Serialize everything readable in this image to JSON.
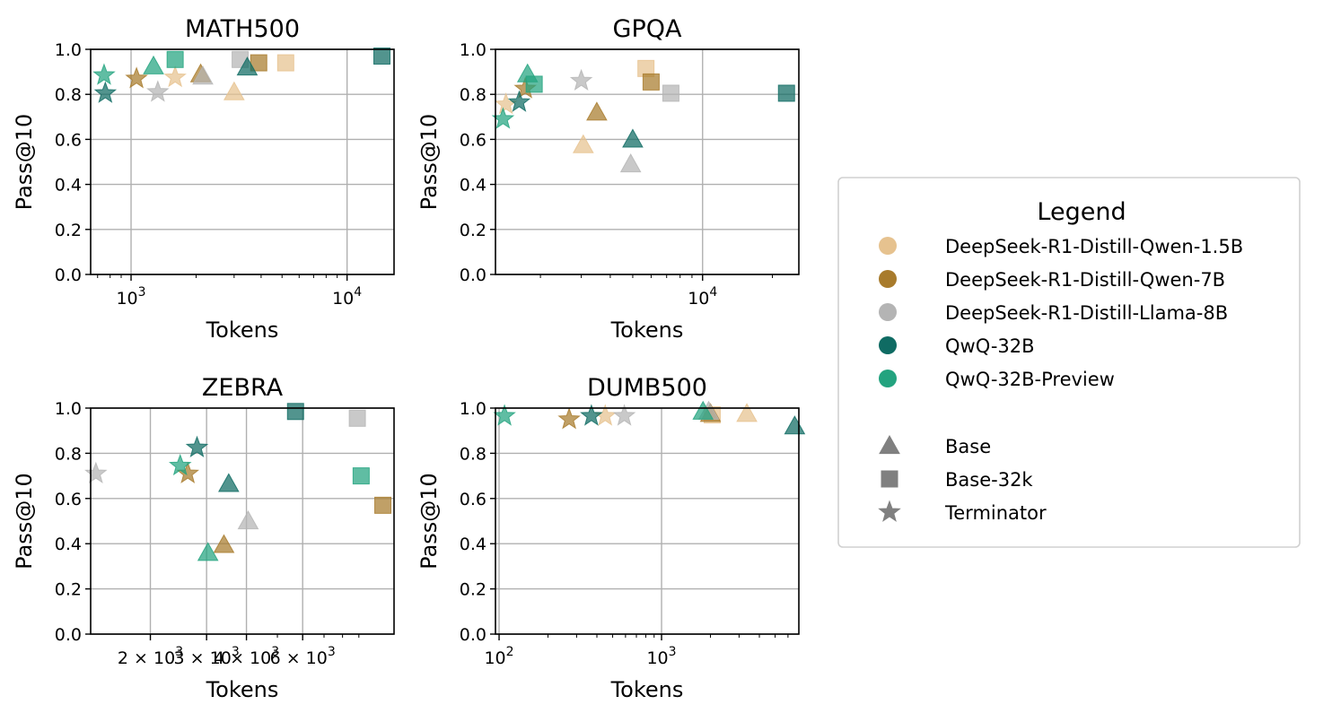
{
  "chart_data": [
    {
      "type": "scatter",
      "title": "MATH500",
      "xlabel": "Tokens",
      "ylabel": "Pass@10",
      "xscale": "log",
      "xlim": [
        650,
        16500
      ],
      "ylim": [
        0,
        1
      ],
      "yticks": [
        "0.0",
        "0.2",
        "0.4",
        "0.6",
        "0.8",
        "1.0"
      ],
      "xticks": [
        {
          "value": 1000,
          "base": "10",
          "exp": "3"
        },
        {
          "value": 10000,
          "base": "10",
          "exp": "4"
        }
      ],
      "grid": true,
      "points": [
        {
          "model": "DeepSeek-R1-Distill-Qwen-1.5B",
          "method": "Terminator",
          "x": 1600,
          "y": 0.875
        },
        {
          "model": "DeepSeek-R1-Distill-Qwen-1.5B",
          "method": "Base",
          "x": 3000,
          "y": 0.81
        },
        {
          "model": "DeepSeek-R1-Distill-Qwen-1.5B",
          "method": "Base-32k",
          "x": 5200,
          "y": 0.94
        },
        {
          "model": "DeepSeek-R1-Distill-Qwen-7B",
          "method": "Terminator",
          "x": 1060,
          "y": 0.87
        },
        {
          "model": "DeepSeek-R1-Distill-Qwen-7B",
          "method": "Base",
          "x": 2100,
          "y": 0.89
        },
        {
          "model": "DeepSeek-R1-Distill-Qwen-7B",
          "method": "Base-32k",
          "x": 3900,
          "y": 0.94
        },
        {
          "model": "DeepSeek-R1-Distill-Llama-8B",
          "method": "Terminator",
          "x": 1330,
          "y": 0.81
        },
        {
          "model": "DeepSeek-R1-Distill-Llama-8B",
          "method": "Base",
          "x": 2150,
          "y": 0.88
        },
        {
          "model": "DeepSeek-R1-Distill-Llama-8B",
          "method": "Base-32k",
          "x": 3200,
          "y": 0.955
        },
        {
          "model": "QwQ-32B",
          "method": "Terminator",
          "x": 760,
          "y": 0.805
        },
        {
          "model": "QwQ-32B",
          "method": "Base",
          "x": 3450,
          "y": 0.92
        },
        {
          "model": "QwQ-32B",
          "method": "Base-32k",
          "x": 14500,
          "y": 0.97
        },
        {
          "model": "QwQ-32B-Preview",
          "method": "Terminator",
          "x": 750,
          "y": 0.885
        },
        {
          "model": "QwQ-32B-Preview",
          "method": "Base",
          "x": 1270,
          "y": 0.925
        },
        {
          "model": "QwQ-32B-Preview",
          "method": "Base-32k",
          "x": 1600,
          "y": 0.955
        }
      ]
    },
    {
      "type": "scatter",
      "title": "GPQA",
      "xlabel": "Tokens",
      "ylabel": "Pass@10",
      "xscale": "log",
      "xlim": [
        1280,
        26000
      ],
      "ylim": [
        0,
        1
      ],
      "yticks": [
        "0.0",
        "0.2",
        "0.4",
        "0.6",
        "0.8",
        "1.0"
      ],
      "xticks": [
        {
          "value": 10000,
          "base": "10",
          "exp": "4"
        }
      ],
      "grid": true,
      "points": [
        {
          "model": "DeepSeek-R1-Distill-Qwen-1.5B",
          "method": "Terminator",
          "x": 1420,
          "y": 0.755
        },
        {
          "model": "DeepSeek-R1-Distill-Qwen-1.5B",
          "method": "Base",
          "x": 3060,
          "y": 0.575
        },
        {
          "model": "DeepSeek-R1-Distill-Qwen-1.5B",
          "method": "Base-32k",
          "x": 5700,
          "y": 0.915
        },
        {
          "model": "DeepSeek-R1-Distill-Qwen-7B",
          "method": "Terminator",
          "x": 1720,
          "y": 0.825
        },
        {
          "model": "DeepSeek-R1-Distill-Qwen-7B",
          "method": "Base",
          "x": 3500,
          "y": 0.72
        },
        {
          "model": "DeepSeek-R1-Distill-Qwen-7B",
          "method": "Base-32k",
          "x": 6000,
          "y": 0.855
        },
        {
          "model": "DeepSeek-R1-Distill-Llama-8B",
          "method": "Terminator",
          "x": 3000,
          "y": 0.86
        },
        {
          "model": "DeepSeek-R1-Distill-Llama-8B",
          "method": "Base",
          "x": 4900,
          "y": 0.49
        },
        {
          "model": "DeepSeek-R1-Distill-Llama-8B",
          "method": "Base-32k",
          "x": 7300,
          "y": 0.805
        },
        {
          "model": "QwQ-32B",
          "method": "Terminator",
          "x": 1620,
          "y": 0.765
        },
        {
          "model": "QwQ-32B",
          "method": "Base",
          "x": 5000,
          "y": 0.6
        },
        {
          "model": "QwQ-32B",
          "method": "Base-32k",
          "x": 23000,
          "y": 0.805
        },
        {
          "model": "QwQ-32B-Preview",
          "method": "Terminator",
          "x": 1380,
          "y": 0.69
        },
        {
          "model": "QwQ-32B-Preview",
          "method": "Base",
          "x": 1760,
          "y": 0.89
        },
        {
          "model": "QwQ-32B-Preview",
          "method": "Base-32k",
          "x": 1880,
          "y": 0.845
        }
      ]
    },
    {
      "type": "scatter",
      "title": "ZEBRA",
      "xlabel": "Tokens",
      "ylabel": "Pass@10",
      "xscale": "log",
      "xlim": [
        1300,
        11600
      ],
      "ylim": [
        0,
        1
      ],
      "yticks": [
        "0.0",
        "0.2",
        "0.4",
        "0.6",
        "0.8",
        "1.0"
      ],
      "xticks": [
        {
          "value": 2000,
          "base": "2 × 10",
          "exp": "3"
        },
        {
          "value": 3000,
          "base": "3 × 10",
          "exp": "3"
        },
        {
          "value": 4000,
          "base": "4 × 10",
          "exp": "3"
        },
        {
          "value": 6000,
          "base": "6 × 10",
          "exp": "3"
        }
      ],
      "grid": true,
      "points": [
        {
          "model": "DeepSeek-R1-Distill-Qwen-7B",
          "method": "Terminator",
          "x": 2620,
          "y": 0.71
        },
        {
          "model": "DeepSeek-R1-Distill-Qwen-7B",
          "method": "Base",
          "x": 3400,
          "y": 0.395
        },
        {
          "model": "DeepSeek-R1-Distill-Qwen-7B",
          "method": "Base-32k",
          "x": 10700,
          "y": 0.57
        },
        {
          "model": "DeepSeek-R1-Distill-Llama-8B",
          "method": "Terminator",
          "x": 1350,
          "y": 0.71
        },
        {
          "model": "DeepSeek-R1-Distill-Llama-8B",
          "method": "Base",
          "x": 4050,
          "y": 0.5
        },
        {
          "model": "DeepSeek-R1-Distill-Llama-8B",
          "method": "Base-32k",
          "x": 8900,
          "y": 0.955
        },
        {
          "model": "QwQ-32B",
          "method": "Terminator",
          "x": 2800,
          "y": 0.825
        },
        {
          "model": "QwQ-32B",
          "method": "Base",
          "x": 3520,
          "y": 0.665
        },
        {
          "model": "QwQ-32B",
          "method": "Base-32k",
          "x": 5700,
          "y": 0.985
        },
        {
          "model": "QwQ-32B-Preview",
          "method": "Terminator",
          "x": 2480,
          "y": 0.745
        },
        {
          "model": "QwQ-32B-Preview",
          "method": "Base",
          "x": 3030,
          "y": 0.36
        },
        {
          "model": "QwQ-32B-Preview",
          "method": "Base-32k",
          "x": 9150,
          "y": 0.7
        }
      ]
    },
    {
      "type": "scatter",
      "title": "DUMB500",
      "xlabel": "Tokens",
      "ylabel": "Pass@10",
      "xscale": "log",
      "xlim": [
        95,
        7000
      ],
      "ylim": [
        0,
        1
      ],
      "yticks": [
        "0.0",
        "0.2",
        "0.4",
        "0.6",
        "0.8",
        "1.0"
      ],
      "xticks": [
        {
          "value": 100,
          "base": "10",
          "exp": "2"
        },
        {
          "value": 1000,
          "base": "10",
          "exp": "3"
        }
      ],
      "grid": true,
      "points": [
        {
          "model": "DeepSeek-R1-Distill-Qwen-1.5B",
          "method": "Terminator",
          "x": 450,
          "y": 0.965
        },
        {
          "model": "DeepSeek-R1-Distill-Qwen-1.5B",
          "method": "Base",
          "x": 3350,
          "y": 0.975
        },
        {
          "model": "DeepSeek-R1-Distill-Qwen-1.5B",
          "method": "Base-32k",
          "x": 2050,
          "y": 0.97
        },
        {
          "model": "DeepSeek-R1-Distill-Qwen-7B",
          "method": "Terminator",
          "x": 270,
          "y": 0.95
        },
        {
          "model": "DeepSeek-R1-Distill-Qwen-7B",
          "method": "Base",
          "x": 2000,
          "y": 0.975
        },
        {
          "model": "DeepSeek-R1-Distill-Llama-8B",
          "method": "Terminator",
          "x": 590,
          "y": 0.965
        },
        {
          "model": "DeepSeek-R1-Distill-Llama-8B",
          "method": "Base",
          "x": 1950,
          "y": 0.985
        },
        {
          "model": "QwQ-32B",
          "method": "Terminator",
          "x": 370,
          "y": 0.965
        },
        {
          "model": "QwQ-32B",
          "method": "Base",
          "x": 6600,
          "y": 0.92
        },
        {
          "model": "QwQ-32B-Preview",
          "method": "Terminator",
          "x": 108,
          "y": 0.965
        },
        {
          "model": "QwQ-32B-Preview",
          "method": "Base",
          "x": 1800,
          "y": 0.985
        }
      ]
    }
  ],
  "legend": {
    "title": "Legend",
    "models": [
      {
        "label": "DeepSeek-R1-Distill-Qwen-1.5B",
        "color": "#e6c28f"
      },
      {
        "label": "DeepSeek-R1-Distill-Qwen-7B",
        "color": "#a87b2c"
      },
      {
        "label": "DeepSeek-R1-Distill-Llama-8B",
        "color": "#b4b4b4"
      },
      {
        "label": "QwQ-32B",
        "color": "#0f6b63"
      },
      {
        "label": "QwQ-32B-Preview",
        "color": "#23a37f"
      }
    ],
    "methods": [
      {
        "label": "Base",
        "marker": "triangle"
      },
      {
        "label": "Base-32k",
        "marker": "square"
      },
      {
        "label": "Terminator",
        "marker": "star"
      }
    ],
    "marker_color": "#808080"
  }
}
